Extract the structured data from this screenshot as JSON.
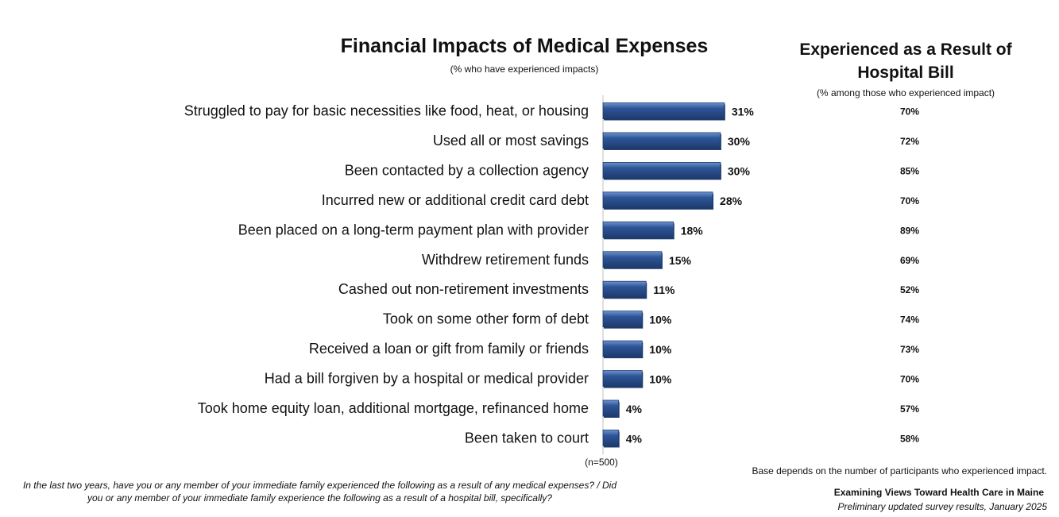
{
  "chart_data": {
    "type": "bar",
    "orientation": "horizontal",
    "title": "Financial Impacts of Medical Expenses",
    "subtitle": "(% who have experienced impacts)",
    "categories": [
      "Struggled to pay for basic necessities like food, heat, or housing",
      "Used all or most savings",
      "Been contacted by a collection agency",
      "Incurred new or additional credit card debt",
      "Been placed on a long-term payment plan with provider",
      "Withdrew retirement funds",
      "Cashed out non-retirement investments",
      "Took on some other form of debt",
      "Received a loan or gift from family or friends",
      "Had a bill forgiven by a hospital or medical provider",
      "Took home equity loan, additional mortgage, refinanced home",
      "Been taken to court"
    ],
    "values": [
      31,
      30,
      30,
      28,
      18,
      15,
      11,
      10,
      10,
      10,
      4,
      4
    ],
    "value_labels": [
      "31%",
      "30%",
      "30%",
      "28%",
      "18%",
      "15%",
      "11%",
      "10%",
      "10%",
      "10%",
      "4%",
      "4%"
    ],
    "xlim": [
      0,
      100
    ],
    "bar_color": "#2E5597",
    "bar_highlight": "#6F93CF",
    "bar_shadow": "#1E3B6E",
    "sample_note": "(n=500)",
    "secondary_column": {
      "title": "Experienced as a Result of Hospital Bill",
      "subtitle": "(% among those who experienced impact)",
      "values": [
        70,
        72,
        85,
        70,
        89,
        69,
        52,
        74,
        73,
        70,
        57,
        58
      ],
      "value_labels": [
        "70%",
        "72%",
        "85%",
        "70%",
        "89%",
        "69%",
        "52%",
        "74%",
        "73%",
        "70%",
        "57%",
        "58%"
      ]
    }
  },
  "notes": {
    "base": "Base depends on the number of participants who experienced impact.",
    "question": "In the last two years, have you or any member of your immediate family experienced the following as a result of any medical expenses? / Did you or any member of your immediate family experience the following as a result of a hospital bill, specifically?"
  },
  "branding": {
    "title": "Examining Views Toward Health Care in Maine",
    "subtitle": "Preliminary updated survey results, January 2025"
  }
}
